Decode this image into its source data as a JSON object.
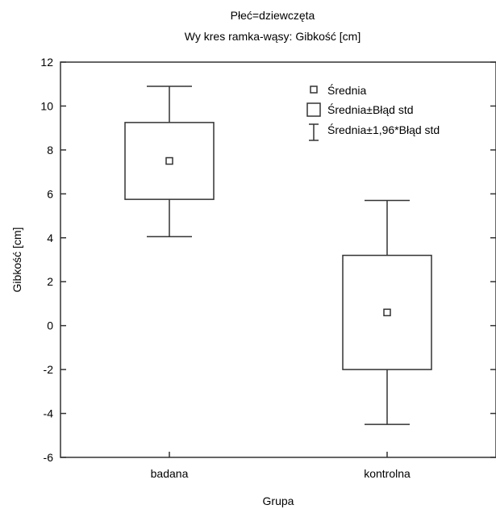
{
  "chart_data": {
    "type": "boxplot",
    "title": "Płeć=dziewczęta",
    "subtitle": "Wy kres ramka-wąsy:  Gibkość [cm]",
    "xlabel": "Grupa",
    "ylabel": "Gibkość [cm]",
    "ylim": [
      -6,
      12
    ],
    "yticks": [
      -6,
      -4,
      -2,
      0,
      2,
      4,
      6,
      8,
      10,
      12
    ],
    "categories": [
      "badana",
      "kontrolna"
    ],
    "series": [
      {
        "category": "badana",
        "mean": 7.5,
        "box_low": 5.75,
        "box_high": 9.25,
        "whisker_low": 4.05,
        "whisker_high": 10.9
      },
      {
        "category": "kontrolna",
        "mean": 0.6,
        "box_low": -2.0,
        "box_high": 3.2,
        "whisker_low": -4.5,
        "whisker_high": 5.7
      }
    ],
    "legend": {
      "position": "top-right",
      "items": [
        {
          "label": "Średnia",
          "symbol": "mean-square-icon"
        },
        {
          "label": "Średnia±Błąd std",
          "symbol": "box-icon"
        },
        {
          "label": "Średnia±1,96*Błąd std",
          "symbol": "whisker-icon"
        }
      ]
    },
    "grid": false,
    "colors": {
      "stroke": "#333333",
      "background": "#ffffff"
    }
  }
}
